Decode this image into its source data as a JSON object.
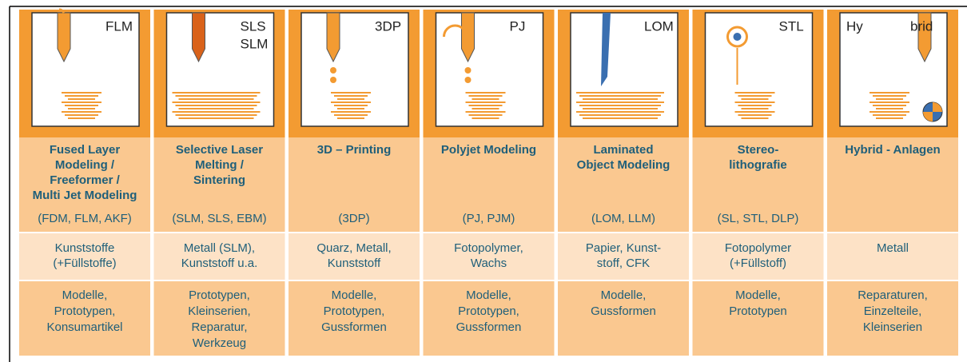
{
  "columns": [
    {
      "icon_label": [
        "FLM"
      ],
      "title": [
        "Fused Layer",
        "Modeling /",
        "Freeformer /",
        "Multi Jet Modeling"
      ],
      "abbreviation": "(FDM, FLM, AKF)",
      "materials": [
        "Kunststoffe",
        "(+Füllstoffe)"
      ],
      "applications": [
        "Modelle,",
        "Prototypen,",
        "Konsumartikel"
      ]
    },
    {
      "icon_label": [
        "SLS",
        "SLM"
      ],
      "title": [
        "Selective Laser",
        "Melting /",
        "Sintering"
      ],
      "abbreviation": "(SLM, SLS, EBM)",
      "materials": [
        "Metall (SLM),",
        "Kunststoff u.a."
      ],
      "applications": [
        "Prototypen,",
        "Kleinserien,",
        "Reparatur,",
        "Werkzeug"
      ]
    },
    {
      "icon_label": [
        "3DP"
      ],
      "title": [
        "3D – Printing"
      ],
      "abbreviation": "(3DP)",
      "materials": [
        "Quarz, Metall,",
        "Kunststoff"
      ],
      "applications": [
        "Modelle,",
        "Prototypen,",
        "Gussformen"
      ]
    },
    {
      "icon_label": [
        "PJ"
      ],
      "title": [
        "Polyjet Modeling"
      ],
      "abbreviation": "(PJ, PJM)",
      "materials": [
        "Fotopolymer,",
        "Wachs"
      ],
      "applications": [
        "Modelle,",
        "Prototypen,",
        "Gussformen"
      ]
    },
    {
      "icon_label": [
        "LOM"
      ],
      "title": [
        "Laminated",
        "Object Modeling"
      ],
      "abbreviation": "(LOM, LLM)",
      "materials": [
        "Papier, Kunst-",
        "stoff, CFK"
      ],
      "applications": [
        "Modelle,",
        "Gussformen"
      ]
    },
    {
      "icon_label": [
        "STL"
      ],
      "title": [
        "Stereo-",
        "lithografie"
      ],
      "abbreviation": "(SL, STL, DLP)",
      "materials": [
        "Fotopolymer",
        "(+Füllstoff)"
      ],
      "applications": [
        "Modelle,",
        "Prototypen"
      ]
    },
    {
      "icon_label": [
        "Hy",
        "brid"
      ],
      "title": [
        "Hybrid - Anlagen"
      ],
      "materials": [
        "Metall"
      ],
      "applications": [
        "Reparaturen,",
        "Einzelteile,",
        "Kleinserien"
      ]
    }
  ]
}
